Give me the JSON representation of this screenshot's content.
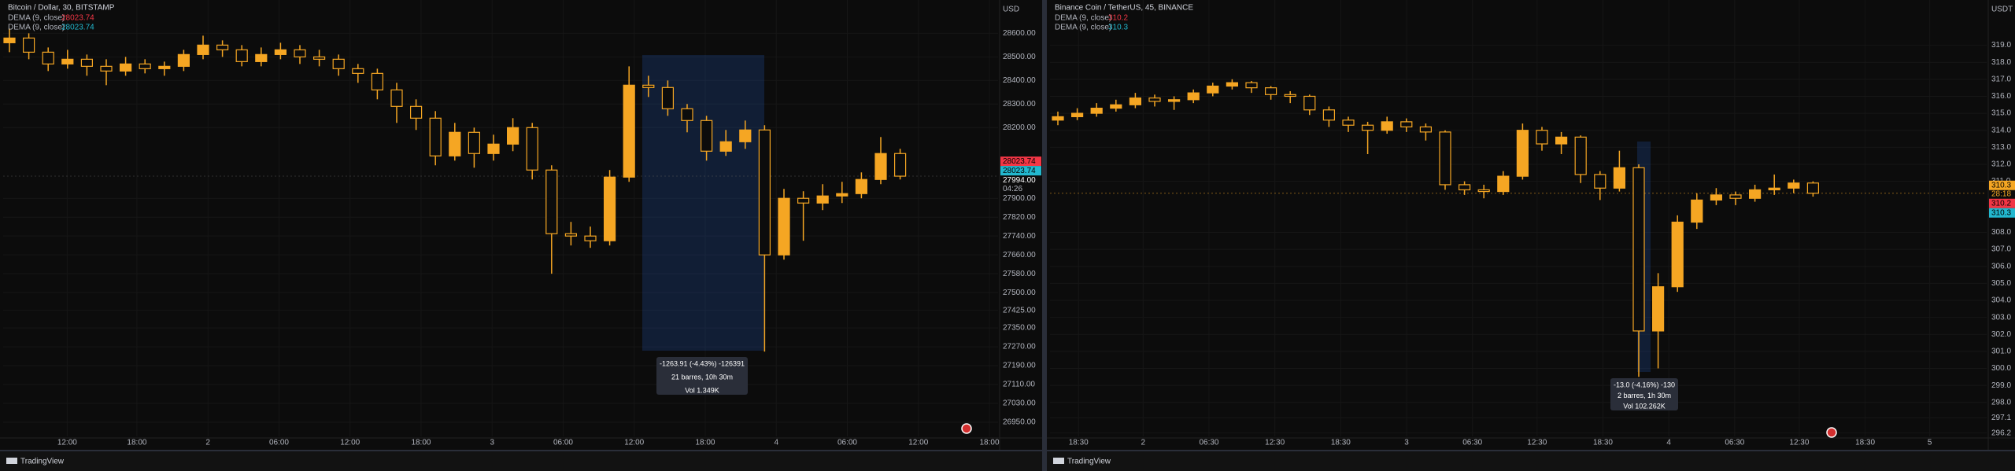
{
  "chart_data": [
    {
      "type": "candlestick",
      "title": "Bitcoin / Dollar, 30, BITSTAMP",
      "currency": "USD",
      "indicators": [
        {
          "name": "DEMA (9, close)",
          "value": 28023.74,
          "color": "#f23645"
        },
        {
          "name": "DEMA (9, close)",
          "value": 28023.74,
          "color": "#22b8cf"
        }
      ],
      "last_price": {
        "value": 27994,
        "label": "27994.00",
        "countdown": "04:26"
      },
      "ylim": [
        26890,
        28708
      ],
      "yticks": [
        {
          "value": 28600,
          "label": "28600.00"
        },
        {
          "value": 28500,
          "label": "28500.00"
        },
        {
          "value": 28400,
          "label": "28400.00"
        },
        {
          "value": 28300,
          "label": "28300.00"
        },
        {
          "value": 28200,
          "label": "28200.00"
        },
        {
          "value": 27900,
          "label": "27900.00"
        },
        {
          "value": 27820,
          "label": "27820.00"
        },
        {
          "value": 27740,
          "label": "27740.00"
        },
        {
          "value": 27660,
          "label": "27660.00"
        },
        {
          "value": 27580,
          "label": "27580.00"
        },
        {
          "value": 27500,
          "label": "27500.00"
        },
        {
          "value": 27425,
          "label": "27425.00"
        },
        {
          "value": 27350,
          "label": "27350.00"
        },
        {
          "value": 27270,
          "label": "27270.00"
        },
        {
          "value": 27190,
          "label": "27190.00"
        },
        {
          "value": 27110,
          "label": "27110.00"
        },
        {
          "value": 27030,
          "label": "27030.00"
        },
        {
          "value": 26950,
          "label": "26950.00"
        }
      ],
      "time_ticks": [
        "12:00",
        "18:00",
        "2",
        "06:00",
        "12:00",
        "18:00",
        "3",
        "06:00",
        "12:00",
        "18:00",
        "4",
        "06:00",
        "12:00",
        "18:00"
      ],
      "measure": [
        "-1263.91 (-4.43%) -126391",
        "21 barres, 10h 30m",
        "Vol 1.349K"
      ],
      "color": "#f5a623",
      "open": [
        28560,
        28580,
        28520,
        28470,
        28490,
        28460,
        28440,
        28470,
        28450,
        28460,
        28510,
        28550,
        28530,
        28480,
        28510,
        28530,
        28500,
        28490,
        28450,
        28430,
        28360,
        28290,
        28240,
        28080,
        28180,
        28090,
        28130,
        28200,
        28020,
        27750,
        27740,
        27720,
        27990,
        28380,
        28370,
        28280,
        28230,
        28100,
        28140,
        28190,
        27660,
        27900,
        27880,
        27910,
        27920,
        27980,
        28090
      ],
      "high": [
        28620,
        28600,
        28540,
        28530,
        28510,
        28490,
        28500,
        28490,
        28480,
        28530,
        28590,
        28570,
        28550,
        28540,
        28560,
        28550,
        28530,
        28510,
        28470,
        28450,
        28390,
        28320,
        28270,
        28220,
        28200,
        28170,
        28240,
        28220,
        28040,
        27800,
        27780,
        28020,
        28460,
        28420,
        28400,
        28300,
        28250,
        28190,
        28230,
        28210,
        27940,
        27930,
        27960,
        27970,
        28010,
        28160,
        28110
      ],
      "low": [
        28520,
        28490,
        28440,
        28450,
        28420,
        28380,
        28420,
        28430,
        28420,
        28440,
        28490,
        28500,
        28460,
        28460,
        28490,
        28470,
        28460,
        28420,
        28390,
        28320,
        28220,
        28190,
        28040,
        28060,
        28030,
        28060,
        28100,
        27980,
        27580,
        27700,
        27690,
        27700,
        27970,
        28330,
        28250,
        28180,
        28060,
        28080,
        28110,
        27250,
        27640,
        27720,
        27850,
        27880,
        27900,
        27960,
        27980
      ],
      "close": [
        28580,
        28520,
        28470,
        28490,
        28460,
        28440,
        28470,
        28450,
        28460,
        28510,
        28550,
        28530,
        28480,
        28510,
        28530,
        28500,
        28490,
        28450,
        28430,
        28360,
        28290,
        28240,
        28080,
        28180,
        28090,
        28130,
        28200,
        28020,
        27750,
        27740,
        27720,
        27990,
        28380,
        28370,
        28280,
        28230,
        28100,
        28140,
        28190,
        27660,
        27900,
        27880,
        27910,
        27920,
        27980,
        28090,
        27994
      ],
      "footer": "TradingView"
    },
    {
      "type": "candlestick",
      "title": "Binance Coin / TetherUS, 45, BINANCE",
      "currency": "USDT",
      "indicators": [
        {
          "name": "DEMA (9, close)",
          "value": 310.2,
          "color": "#f23645"
        },
        {
          "name": "DEMA (9, close)",
          "value": 310.3,
          "color": "#22b8cf"
        }
      ],
      "last_price": {
        "value": 310.3,
        "countdown": "28:18",
        "color": "#f5a623"
      },
      "ylim": [
        296,
        321.2
      ],
      "yticks": [
        {
          "value": 319,
          "label": "319.0"
        },
        {
          "value": 318,
          "label": "318.0"
        },
        {
          "value": 317,
          "label": "317.0"
        },
        {
          "value": 316,
          "label": "316.0"
        },
        {
          "value": 315,
          "label": "315.0"
        },
        {
          "value": 314,
          "label": "314.0"
        },
        {
          "value": 313,
          "label": "313.0"
        },
        {
          "value": 312,
          "label": "312.0"
        },
        {
          "value": 311,
          "label": "311.0"
        },
        {
          "value": 308,
          "label": "308.0"
        },
        {
          "value": 307,
          "label": "307.0"
        },
        {
          "value": 306,
          "label": "306.0"
        },
        {
          "value": 305,
          "label": "305.0"
        },
        {
          "value": 304,
          "label": "304.0"
        },
        {
          "value": 303,
          "label": "303.0"
        },
        {
          "value": 302,
          "label": "302.0"
        },
        {
          "value": 301,
          "label": "301.0"
        },
        {
          "value": 300,
          "label": "300.0"
        },
        {
          "value": 299,
          "label": "299.0"
        },
        {
          "value": 298,
          "label": "298.0"
        },
        297.1,
        296.2
      ],
      "time_ticks": [
        "18:30",
        "2",
        "06:30",
        "12:30",
        "18:30",
        "3",
        "06:30",
        "12:30",
        "18:30",
        "4",
        "06:30",
        "12:30",
        "18:30",
        "5"
      ],
      "measure": [
        "-13.0 (-4.16%) -130",
        "2 barres, 1h 30m",
        "Vol 102.262K"
      ],
      "color": "#f5a623",
      "open": [
        314.6,
        314.8,
        315.0,
        315.3,
        315.5,
        315.9,
        315.7,
        315.8,
        316.2,
        316.6,
        316.8,
        316.5,
        316.1,
        316.0,
        315.2,
        314.6,
        314.3,
        314.0,
        314.5,
        314.2,
        313.9,
        310.8,
        310.5,
        310.4,
        311.3,
        314.0,
        313.2,
        313.6,
        311.4,
        310.6,
        311.8,
        302.2,
        304.8,
        308.6,
        309.9,
        310.2,
        310.0,
        310.5,
        310.6,
        310.9
      ],
      "high": [
        315.1,
        315.3,
        315.6,
        315.8,
        316.2,
        316.1,
        316.0,
        316.4,
        316.8,
        317.0,
        316.9,
        316.6,
        316.3,
        316.1,
        315.4,
        314.8,
        314.5,
        314.8,
        314.7,
        314.4,
        314.0,
        311.0,
        310.8,
        311.6,
        314.4,
        314.2,
        313.9,
        313.7,
        311.6,
        312.8,
        312.0,
        305.6,
        309.0,
        310.3,
        310.6,
        310.4,
        310.8,
        311.4,
        311.1,
        311.0
      ],
      "low": [
        314.3,
        314.6,
        314.8,
        315.1,
        315.3,
        315.4,
        315.2,
        315.6,
        316.0,
        316.4,
        316.2,
        315.8,
        315.6,
        314.9,
        314.2,
        313.9,
        312.6,
        313.8,
        313.9,
        313.4,
        310.5,
        310.2,
        310.0,
        310.2,
        311.1,
        312.8,
        312.6,
        310.9,
        309.9,
        310.4,
        299.5,
        300.0,
        304.5,
        308.2,
        309.6,
        309.6,
        309.8,
        310.2,
        310.3,
        310.1
      ],
      "close": [
        314.8,
        315.0,
        315.3,
        315.5,
        315.9,
        315.7,
        315.8,
        316.2,
        316.6,
        316.8,
        316.5,
        316.1,
        316.0,
        315.2,
        314.6,
        314.3,
        314.0,
        314.5,
        314.2,
        313.9,
        310.8,
        310.5,
        310.4,
        311.3,
        314.0,
        313.2,
        313.6,
        311.4,
        310.6,
        311.8,
        302.2,
        304.8,
        308.6,
        309.9,
        310.2,
        310.0,
        310.5,
        310.6,
        310.9,
        310.3
      ],
      "footer": "TradingView"
    }
  ]
}
